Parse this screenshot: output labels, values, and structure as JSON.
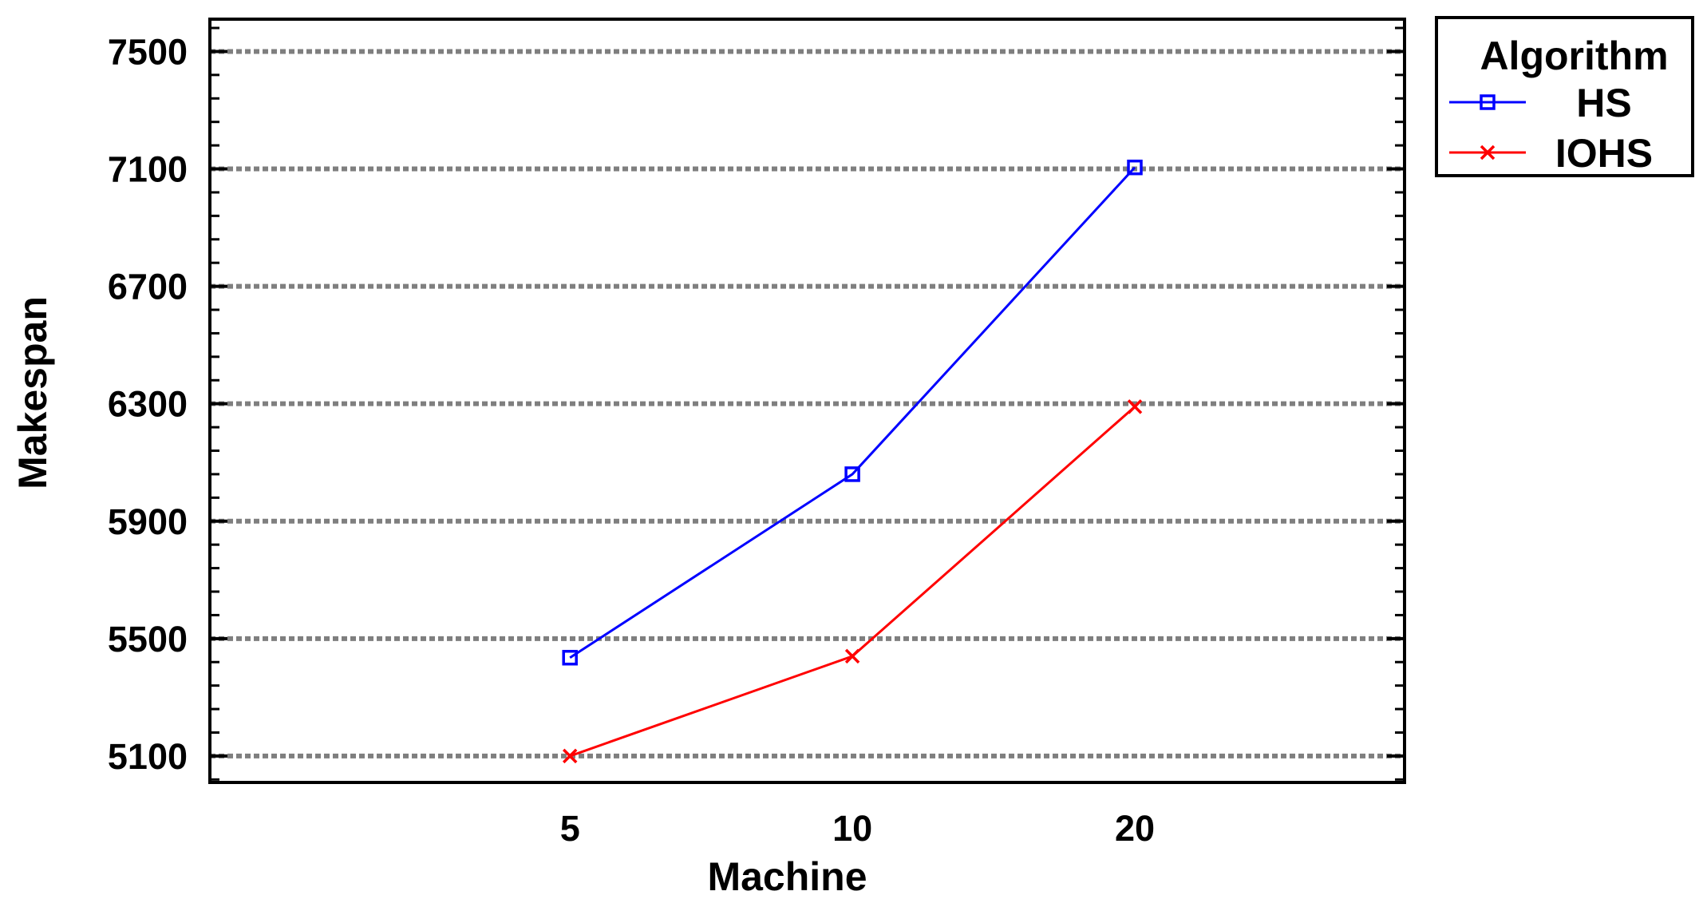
{
  "chart_data": {
    "type": "line",
    "title": "",
    "xlabel": "Machine",
    "ylabel": "Makespan",
    "categories": [
      "5",
      "10",
      "20"
    ],
    "ylim": [
      5010,
      7610
    ],
    "yticks": [
      "5100",
      "5500",
      "5900",
      "6300",
      "6700",
      "7100",
      "7500"
    ],
    "ytick_values": [
      5100,
      5500,
      5900,
      6300,
      6700,
      7100,
      7500
    ],
    "grid": true,
    "legend": {
      "title": "Algorithm",
      "placement": "outside top-right"
    },
    "series": [
      {
        "name": "HS",
        "color": "#0000ff",
        "marker": "square",
        "values": [
          5435,
          6060,
          7105
        ]
      },
      {
        "name": "IOHS",
        "color": "#ff0000",
        "marker": "x",
        "values": [
          5100,
          5440,
          6290
        ]
      }
    ]
  }
}
